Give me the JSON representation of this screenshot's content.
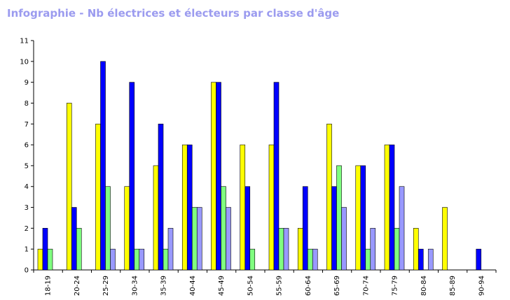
{
  "chart_data": {
    "type": "bar",
    "title": "Infographie - Nb électrices et électeurs par classe d'âge",
    "categories": [
      "18-19",
      "20-24",
      "25-29",
      "30-34",
      "35-39",
      "40-44",
      "45-49",
      "50-54",
      "55-59",
      "60-64",
      "65-69",
      "70-74",
      "75-79",
      "80-84",
      "85-89",
      "90-94"
    ],
    "series": [
      {
        "color": "#ffff00",
        "values": [
          1,
          8,
          7,
          4,
          5,
          6,
          9,
          6,
          6,
          2,
          7,
          5,
          6,
          2,
          3,
          0
        ]
      },
      {
        "color": "#0000ff",
        "values": [
          2,
          3,
          10,
          9,
          7,
          6,
          9,
          4,
          9,
          4,
          4,
          5,
          6,
          1,
          0,
          1
        ]
      },
      {
        "color": "#80ff80",
        "values": [
          1,
          2,
          4,
          1,
          1,
          3,
          4,
          1,
          2,
          1,
          5,
          1,
          2,
          0,
          0,
          0
        ]
      },
      {
        "color": "#9999ff",
        "values": [
          0,
          0,
          1,
          1,
          2,
          3,
          3,
          0,
          2,
          1,
          3,
          2,
          4,
          1,
          0,
          0
        ]
      }
    ],
    "ylim": [
      0,
      11
    ],
    "yticks": [
      0,
      1,
      2,
      3,
      4,
      5,
      6,
      7,
      8,
      9,
      10,
      11
    ],
    "xlabel": "",
    "ylabel": "",
    "grid": false,
    "legend": false
  }
}
